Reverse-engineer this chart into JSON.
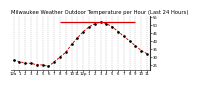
{
  "title": "Milwaukee Weather Outdoor Temperature per Hour (Last 24 Hours)",
  "hours": [
    0,
    1,
    2,
    3,
    4,
    5,
    6,
    7,
    8,
    9,
    10,
    11,
    12,
    13,
    14,
    15,
    16,
    17,
    18,
    19,
    20,
    21,
    22,
    23
  ],
  "temps": [
    28,
    27,
    26,
    26,
    25,
    25,
    24,
    27,
    30,
    33,
    38,
    42,
    46,
    49,
    51,
    52,
    51,
    49,
    46,
    43,
    40,
    37,
    34,
    32
  ],
  "line_color": "#dd0000",
  "marker_color": "#000000",
  "bg_color": "#ffffff",
  "grid_color": "#888888",
  "text_color": "#000000",
  "ylim": [
    22,
    56
  ],
  "xlim": [
    -0.5,
    23.5
  ],
  "yticks": [
    25,
    30,
    35,
    40,
    45,
    50,
    55
  ],
  "xtick_labels": [
    "12a",
    "1",
    "2",
    "3",
    "4",
    "5",
    "6",
    "7",
    "8",
    "9",
    "10",
    "11",
    "12p",
    "1",
    "2",
    "3",
    "4",
    "5",
    "6",
    "7",
    "8",
    "9",
    "10",
    "11"
  ],
  "max_line_y": 52,
  "title_fontsize": 3.8,
  "tick_fontsize": 2.8
}
